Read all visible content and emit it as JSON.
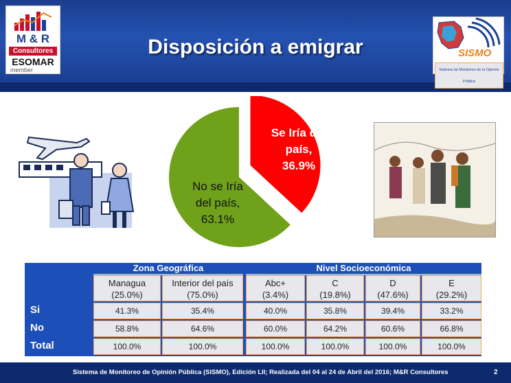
{
  "slide": {
    "title": "Disposición a emigrar",
    "page_number": "2"
  },
  "logo_left": {
    "line1": "M & R",
    "line2": "Consultores",
    "line3": "ESOMAR",
    "line4": "member"
  },
  "logo_right": {
    "name": "SISMO",
    "subtitle": "Sistema de Monitoreo de la Opinión Pública"
  },
  "pie": {
    "slices": [
      {
        "label_line1": "Se Iría del",
        "label_line2": "país,",
        "label_line3": "36.9%",
        "value": 36.9,
        "color": "#ff0000"
      },
      {
        "label_line1": "No se Iría",
        "label_line2": "del país,",
        "label_line3": "63.1%",
        "value": 63.1,
        "color": "#6fa11a"
      }
    ]
  },
  "chart_data": {
    "type": "pie",
    "categories": [
      "Se Iría del país",
      "No se Iría del país"
    ],
    "values": [
      36.9,
      63.1
    ]
  },
  "table": {
    "group_headers": [
      "Zona Geográfica",
      "Nivel Socioeconómica"
    ],
    "sub_headers": [
      {
        "line1": "Managua",
        "line2": "(25.0%)"
      },
      {
        "line1": "Interior del país",
        "line2": "(75.0%)"
      },
      {
        "line1": "Abc+",
        "line2": "(3.4%)"
      },
      {
        "line1": "C",
        "line2": "(19.8%)"
      },
      {
        "line1": "D",
        "line2": "(47.6%)"
      },
      {
        "line1": "E",
        "line2": "(29.2%)"
      }
    ],
    "rows": [
      {
        "label": "Si",
        "values": [
          "41.3%",
          "35.4%",
          "40.0%",
          "35.8%",
          "39.4%",
          "33.2%"
        ]
      },
      {
        "label": "No",
        "values": [
          "58.8%",
          "64.6%",
          "60.0%",
          "64.2%",
          "60.6%",
          "66.8%"
        ]
      },
      {
        "label": "Total",
        "values": [
          "100.0%",
          "100.0%",
          "100.0%",
          "100.0%",
          "100.0%",
          "100.0%"
        ]
      }
    ]
  },
  "footer": {
    "text": "Sistema de Monitoreo de Opinión Pública (SISMO), Edición LII; Realizada del 04 al 24 de Abril del 2016; M&R Consultores"
  },
  "colors": {
    "header_blue": "#2452b0",
    "table_blue": "#1d4fb8",
    "footer_blue": "#0d2a6e",
    "cell_border": "#f0a55b"
  }
}
